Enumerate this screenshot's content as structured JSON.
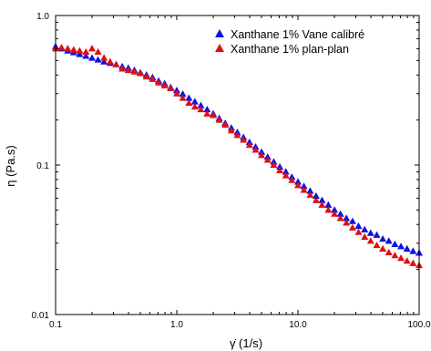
{
  "chart_data": {
    "type": "scatter",
    "xlabel": "γ̇  (1/s)",
    "ylabel": "η  (Pa.s)",
    "xscale": "log",
    "yscale": "log",
    "xlim": [
      0.1,
      100
    ],
    "ylim": [
      0.01,
      1
    ],
    "x_ticks": [
      {
        "value": 0.1,
        "label": "0.1"
      },
      {
        "value": 1,
        "label": "1.0"
      },
      {
        "value": 10,
        "label": "10.0"
      },
      {
        "value": 100,
        "label": "100.0"
      }
    ],
    "y_ticks": [
      {
        "value": 0.01,
        "label": "0.01"
      },
      {
        "value": 0.1,
        "label": "0.1"
      },
      {
        "value": 1,
        "label": "1.0"
      }
    ],
    "grid": false,
    "legend_position": "top-right",
    "series": [
      {
        "name": "Xanthane 1% Vane calibré",
        "color": "#1010e0",
        "marker": "triangle-up",
        "x": [
          0.1,
          0.112,
          0.126,
          0.141,
          0.158,
          0.178,
          0.2,
          0.224,
          0.251,
          0.282,
          0.316,
          0.355,
          0.398,
          0.447,
          0.501,
          0.562,
          0.631,
          0.708,
          0.794,
          0.891,
          1.0,
          1.12,
          1.26,
          1.41,
          1.58,
          1.78,
          2.0,
          2.24,
          2.51,
          2.82,
          3.16,
          3.55,
          3.98,
          4.47,
          5.01,
          5.62,
          6.31,
          7.08,
          7.94,
          8.91,
          10.0,
          11.2,
          12.6,
          14.1,
          15.8,
          17.8,
          20.0,
          22.4,
          25.1,
          28.2,
          31.6,
          35.5,
          39.8,
          44.7,
          50.1,
          56.2,
          63.1,
          70.8,
          79.4,
          89.1,
          100.0
        ],
        "y": [
          0.62,
          0.6,
          0.58,
          0.565,
          0.55,
          0.535,
          0.52,
          0.505,
          0.49,
          0.48,
          0.47,
          0.455,
          0.445,
          0.43,
          0.415,
          0.4,
          0.385,
          0.365,
          0.35,
          0.33,
          0.315,
          0.298,
          0.28,
          0.265,
          0.25,
          0.235,
          0.22,
          0.205,
          0.19,
          0.177,
          0.165,
          0.153,
          0.142,
          0.132,
          0.122,
          0.113,
          0.105,
          0.097,
          0.09,
          0.083,
          0.077,
          0.072,
          0.067,
          0.062,
          0.058,
          0.054,
          0.05,
          0.047,
          0.044,
          0.042,
          0.039,
          0.037,
          0.035,
          0.034,
          0.032,
          0.031,
          0.0295,
          0.0285,
          0.0275,
          0.0265,
          0.0258
        ]
      },
      {
        "name": "Xanthane 1% plan-plan",
        "color": "#e01010",
        "marker": "triangle-up",
        "x": [
          0.1,
          0.112,
          0.126,
          0.141,
          0.158,
          0.178,
          0.2,
          0.224,
          0.251,
          0.282,
          0.316,
          0.355,
          0.398,
          0.447,
          0.501,
          0.562,
          0.631,
          0.708,
          0.794,
          0.891,
          1.0,
          1.12,
          1.26,
          1.41,
          1.58,
          1.78,
          2.0,
          2.24,
          2.51,
          2.82,
          3.16,
          3.55,
          3.98,
          4.47,
          5.01,
          5.62,
          6.31,
          7.08,
          7.94,
          8.91,
          10.0,
          11.2,
          12.6,
          14.1,
          15.8,
          17.8,
          20.0,
          22.4,
          25.1,
          28.2,
          31.6,
          35.5,
          39.8,
          44.7,
          50.1,
          56.2,
          63.1,
          70.8,
          79.4,
          89.1,
          100.0
        ],
        "y": [
          0.6,
          0.61,
          0.6,
          0.59,
          0.58,
          0.57,
          0.6,
          0.57,
          0.52,
          0.49,
          0.47,
          0.44,
          0.43,
          0.42,
          0.41,
          0.39,
          0.375,
          0.355,
          0.34,
          0.325,
          0.3,
          0.28,
          0.26,
          0.245,
          0.235,
          0.22,
          0.215,
          0.2,
          0.185,
          0.17,
          0.158,
          0.147,
          0.136,
          0.126,
          0.116,
          0.108,
          0.1,
          0.092,
          0.085,
          0.079,
          0.073,
          0.068,
          0.063,
          0.058,
          0.054,
          0.05,
          0.047,
          0.044,
          0.041,
          0.038,
          0.0355,
          0.033,
          0.031,
          0.029,
          0.0275,
          0.026,
          0.0248,
          0.0238,
          0.0228,
          0.022,
          0.0213
        ]
      }
    ]
  }
}
